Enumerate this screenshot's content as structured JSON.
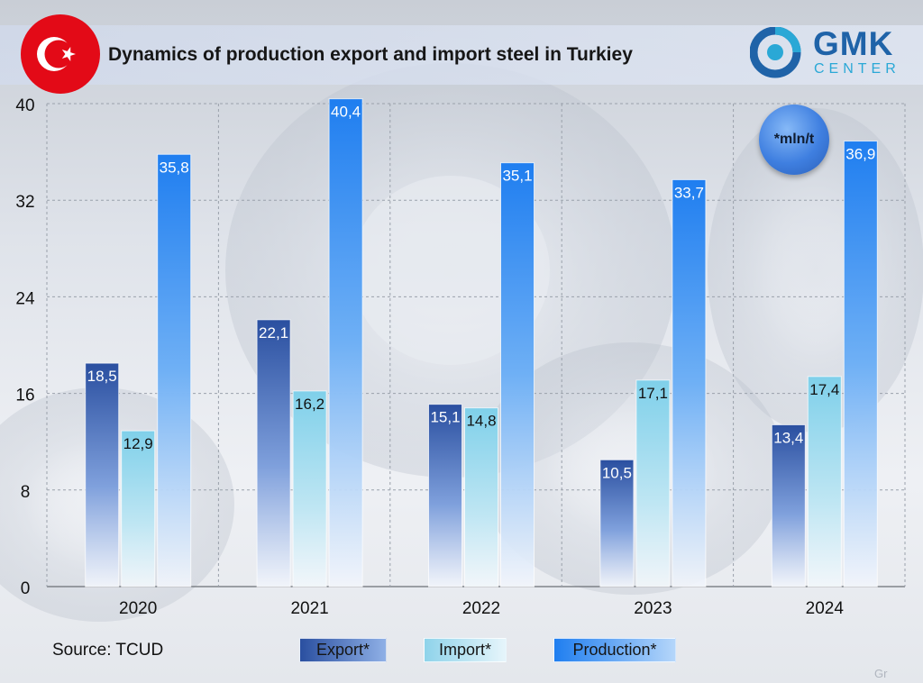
{
  "header": {
    "title": "Dynamics of production export and import steel in Turkiey",
    "brand_name": "GMK",
    "brand_sub": "CENTER",
    "unit_note": "*mln/t"
  },
  "footer": {
    "source": "Source: TCUD",
    "watermark": "Gr"
  },
  "legend": {
    "items": [
      {
        "label": "Export*",
        "color": "#3b5fb0"
      },
      {
        "label": "Import*",
        "color": "#8fd3ea"
      },
      {
        "label": "Production*",
        "color": "#2f86f0"
      }
    ]
  },
  "chart_data": {
    "type": "bar",
    "title": "Dynamics of production export and import steel in Turkiey",
    "xlabel": "",
    "ylabel": "",
    "unit": "*mln/t",
    "ylim": [
      0,
      40
    ],
    "yticks": [
      "0",
      "8",
      "16",
      "24",
      "32",
      "40"
    ],
    "grid": true,
    "legend_position": "bottom",
    "categories": [
      "2020",
      "2021",
      "2022",
      "2023",
      "2024"
    ],
    "series": [
      {
        "name": "Export*",
        "values": [
          18.5,
          22.1,
          15.1,
          10.5,
          13.4
        ],
        "labels": [
          "18,5",
          "22,1",
          "15,1",
          "10,5",
          "13,4"
        ]
      },
      {
        "name": "Import*",
        "values": [
          12.9,
          16.2,
          14.8,
          17.1,
          17.4
        ],
        "labels": [
          "12,9",
          "16,2",
          "14,8",
          "17,1",
          "17,4"
        ]
      },
      {
        "name": "Production*",
        "values": [
          35.8,
          40.4,
          35.1,
          33.7,
          36.9
        ],
        "labels": [
          "35,8",
          "40,4",
          "35,1",
          "33,7",
          "36,9"
        ]
      }
    ]
  }
}
